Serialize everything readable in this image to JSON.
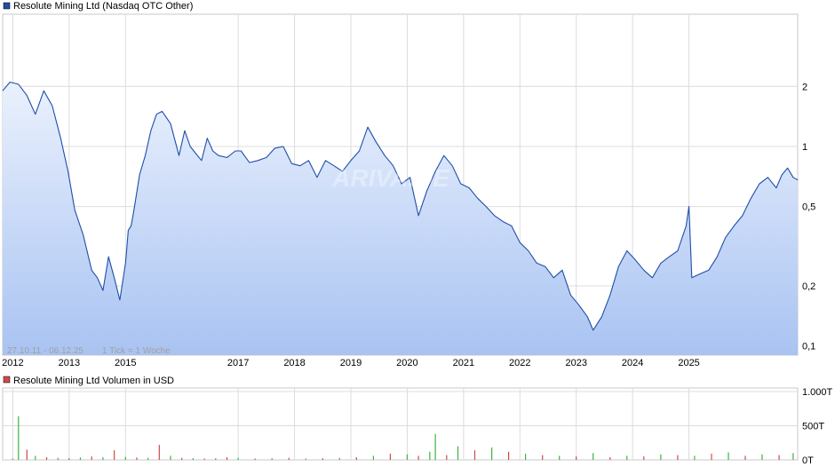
{
  "chart_data": [
    {
      "type": "area",
      "legend_label": "Resolute Mining Ltd (Nasdaq OTC Other)",
      "series_color": "#1f4fa8",
      "fill_top_color": "#eaf1fd",
      "fill_bottom_color": "#a9c3f2",
      "range_label": "27.10.11 - 06.12.25",
      "tick_info": "1 Tick = 1 Woche",
      "y_scale": "log",
      "ylim": [
        0.09,
        4.6
      ],
      "y_ticks": [
        {
          "value": 2,
          "label": "2"
        },
        {
          "value": 1,
          "label": "1"
        },
        {
          "value": 0.5,
          "label": "0,5"
        },
        {
          "value": 0.2,
          "label": "0,2"
        },
        {
          "value": 0.1,
          "label": "0,1"
        }
      ],
      "xlim": [
        2011.82,
        2025.93
      ],
      "x_ticks": [
        {
          "value": 2012.0,
          "label": "2012"
        },
        {
          "value": 2013.0,
          "label": "2013"
        },
        {
          "value": 2014.0,
          "label": "2015"
        },
        {
          "value": 2016.0,
          "label": "2017"
        },
        {
          "value": 2017.0,
          "label": "2018"
        },
        {
          "value": 2018.0,
          "label": "2019"
        },
        {
          "value": 2019.0,
          "label": "2020"
        },
        {
          "value": 2020.0,
          "label": "2021"
        },
        {
          "value": 2021.0,
          "label": "2022"
        },
        {
          "value": 2022.0,
          "label": "2023"
        },
        {
          "value": 2023.0,
          "label": "2024"
        },
        {
          "value": 2024.0,
          "label": "2025"
        }
      ],
      "grid": true,
      "x": [
        2011.82,
        2011.95,
        2012.1,
        2012.25,
        2012.4,
        2012.55,
        2012.7,
        2012.85,
        2012.98,
        2013.1,
        2013.25,
        2013.4,
        2013.5,
        2013.6,
        2013.7,
        2013.8,
        2013.9,
        2014.0,
        2014.05,
        2014.1,
        2014.15,
        2014.25,
        2014.35,
        2014.45,
        2014.55,
        2014.65,
        2014.8,
        2014.95,
        2015.05,
        2015.15,
        2015.25,
        2015.35,
        2015.45,
        2015.55,
        2015.65,
        2015.8,
        2015.95,
        2016.05,
        2016.2,
        2016.35,
        2016.5,
        2016.65,
        2016.8,
        2016.95,
        2017.1,
        2017.25,
        2017.4,
        2017.55,
        2017.7,
        2017.85,
        2018.0,
        2018.15,
        2018.3,
        2018.45,
        2018.6,
        2018.75,
        2018.9,
        2019.05,
        2019.2,
        2019.35,
        2019.5,
        2019.65,
        2019.8,
        2019.95,
        2020.1,
        2020.25,
        2020.4,
        2020.55,
        2020.7,
        2020.85,
        2021.0,
        2021.15,
        2021.3,
        2021.45,
        2021.6,
        2021.75,
        2021.9,
        2022.05,
        2022.2,
        2022.3,
        2022.45,
        2022.6,
        2022.75,
        2022.9,
        2023.05,
        2023.2,
        2023.35,
        2023.5,
        2023.65,
        2023.8,
        2023.95,
        2024.0,
        2024.05,
        2024.2,
        2024.35,
        2024.5,
        2024.65,
        2024.8,
        2024.95,
        2025.1,
        2025.25,
        2025.4,
        2025.55,
        2025.65,
        2025.75,
        2025.85,
        2025.93
      ],
      "values": [
        1.9,
        2.1,
        2.05,
        1.8,
        1.45,
        1.9,
        1.6,
        1.1,
        0.75,
        0.48,
        0.36,
        0.24,
        0.22,
        0.19,
        0.28,
        0.22,
        0.17,
        0.26,
        0.38,
        0.4,
        0.48,
        0.72,
        0.9,
        1.2,
        1.45,
        1.5,
        1.3,
        0.9,
        1.2,
        1.0,
        0.92,
        0.85,
        1.1,
        0.95,
        0.9,
        0.88,
        0.95,
        0.95,
        0.83,
        0.85,
        0.88,
        0.98,
        1.0,
        0.82,
        0.8,
        0.85,
        0.7,
        0.85,
        0.8,
        0.75,
        0.85,
        0.95,
        1.25,
        1.05,
        0.9,
        0.8,
        0.65,
        0.7,
        0.45,
        0.6,
        0.75,
        0.9,
        0.8,
        0.65,
        0.62,
        0.55,
        0.5,
        0.45,
        0.42,
        0.4,
        0.33,
        0.3,
        0.26,
        0.25,
        0.22,
        0.24,
        0.18,
        0.16,
        0.14,
        0.12,
        0.14,
        0.18,
        0.25,
        0.3,
        0.27,
        0.24,
        0.22,
        0.26,
        0.28,
        0.3,
        0.4,
        0.5,
        0.22,
        0.23,
        0.24,
        0.28,
        0.35,
        0.4,
        0.45,
        0.55,
        0.65,
        0.7,
        0.62,
        0.72,
        0.78,
        0.7,
        0.68
      ]
    },
    {
      "type": "bar",
      "legend_label": "Resolute Mining Ltd Volumen in USD",
      "series_color": "#d04a4a",
      "bar_up_color": "#3cb43c",
      "bar_down_color": "#d04a4a",
      "y_ticks": [
        {
          "value": 1000,
          "label": "1.000T"
        },
        {
          "value": 500,
          "label": "500T"
        },
        {
          "value": 0,
          "label": "0T"
        }
      ],
      "ylim": [
        0,
        1000
      ],
      "x": [
        2012.0,
        2012.1,
        2012.25,
        2012.4,
        2012.6,
        2012.8,
        2013.0,
        2013.2,
        2013.4,
        2013.6,
        2013.8,
        2014.0,
        2014.2,
        2014.4,
        2014.6,
        2014.8,
        2015.0,
        2015.2,
        2015.4,
        2015.6,
        2015.8,
        2016.0,
        2016.3,
        2016.6,
        2016.9,
        2017.2,
        2017.5,
        2017.8,
        2018.1,
        2018.4,
        2018.7,
        2019.0,
        2019.2,
        2019.4,
        2019.5,
        2019.7,
        2019.9,
        2020.2,
        2020.5,
        2020.8,
        2021.1,
        2021.4,
        2021.7,
        2022.0,
        2022.3,
        2022.6,
        2022.9,
        2023.2,
        2023.5,
        2023.8,
        2024.1,
        2024.4,
        2024.7,
        2025.0,
        2025.3,
        2025.6,
        2025.85
      ],
      "values": [
        20,
        640,
        150,
        60,
        40,
        30,
        25,
        35,
        50,
        40,
        140,
        45,
        35,
        30,
        220,
        60,
        30,
        25,
        20,
        25,
        40,
        30,
        20,
        25,
        30,
        20,
        25,
        30,
        40,
        60,
        90,
        80,
        60,
        120,
        380,
        70,
        200,
        140,
        180,
        120,
        90,
        70,
        60,
        50,
        100,
        40,
        60,
        50,
        80,
        70,
        60,
        90,
        110,
        60,
        80,
        70,
        100
      ],
      "directions": [
        "up",
        "up",
        "down",
        "up",
        "down",
        "up",
        "down",
        "up",
        "down",
        "up",
        "down",
        "up",
        "down",
        "up",
        "down",
        "up",
        "down",
        "up",
        "down",
        "up",
        "down",
        "up",
        "down",
        "up",
        "down",
        "up",
        "down",
        "up",
        "down",
        "up",
        "down",
        "up",
        "down",
        "up",
        "up",
        "down",
        "up",
        "down",
        "up",
        "down",
        "up",
        "down",
        "up",
        "down",
        "up",
        "down",
        "up",
        "down",
        "up",
        "down",
        "up",
        "down",
        "up",
        "down",
        "up",
        "down",
        "up"
      ]
    }
  ]
}
